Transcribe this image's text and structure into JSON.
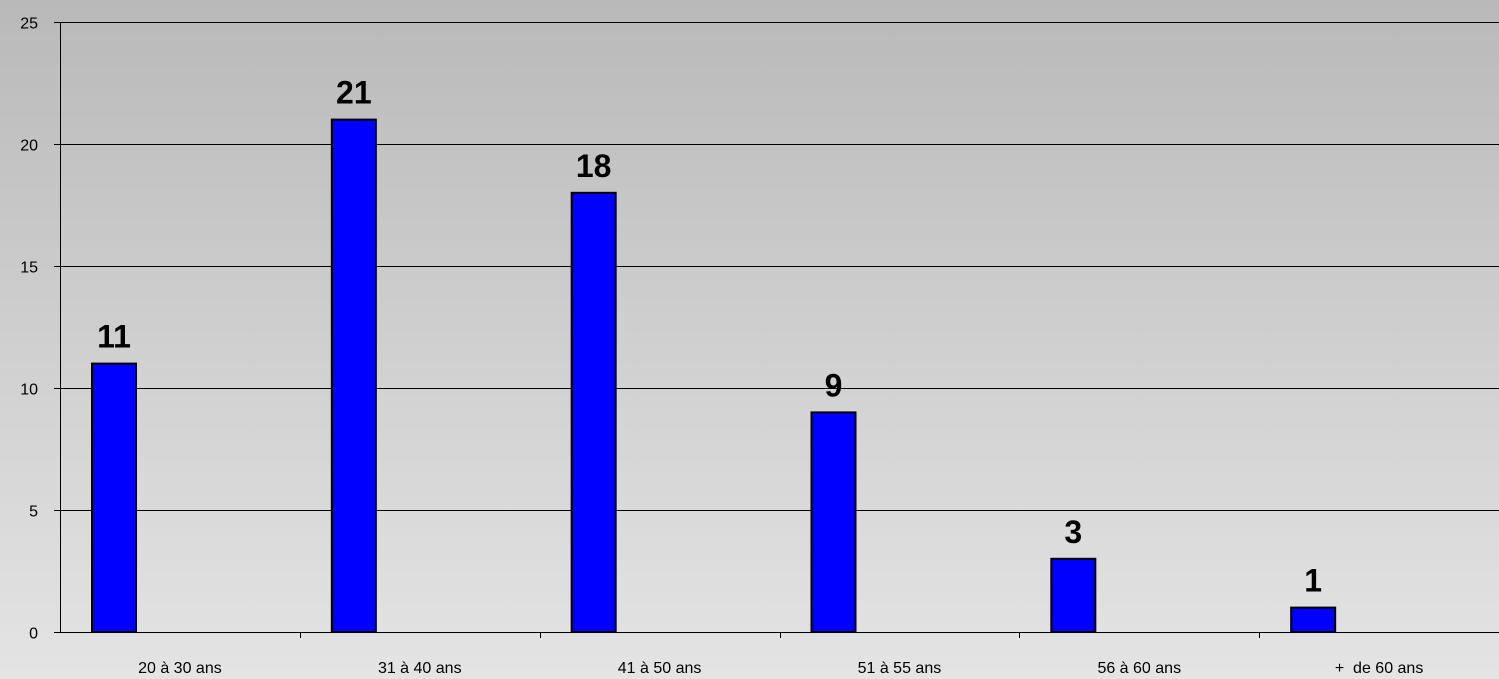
{
  "chart_data": {
    "type": "bar",
    "categories": [
      "20 à 30 ans",
      "31 à 40 ans",
      "41 à 50 ans",
      "51 à 55 ans",
      "56 à 60 ans",
      "+  de 60 ans"
    ],
    "values": [
      11,
      21,
      18,
      9,
      3,
      1
    ],
    "data_labels": [
      "11",
      "21",
      "18",
      "9",
      "3",
      "1"
    ],
    "title": "",
    "xlabel": "",
    "ylabel": "",
    "ylim": [
      0,
      25
    ],
    "yticks": [
      "0",
      "5",
      "10",
      "15",
      "20",
      "25"
    ],
    "grid": true,
    "legend": "none",
    "colors": {
      "bar": "#0000ff",
      "bar_outline": "#000000",
      "grid": "#000000"
    }
  }
}
